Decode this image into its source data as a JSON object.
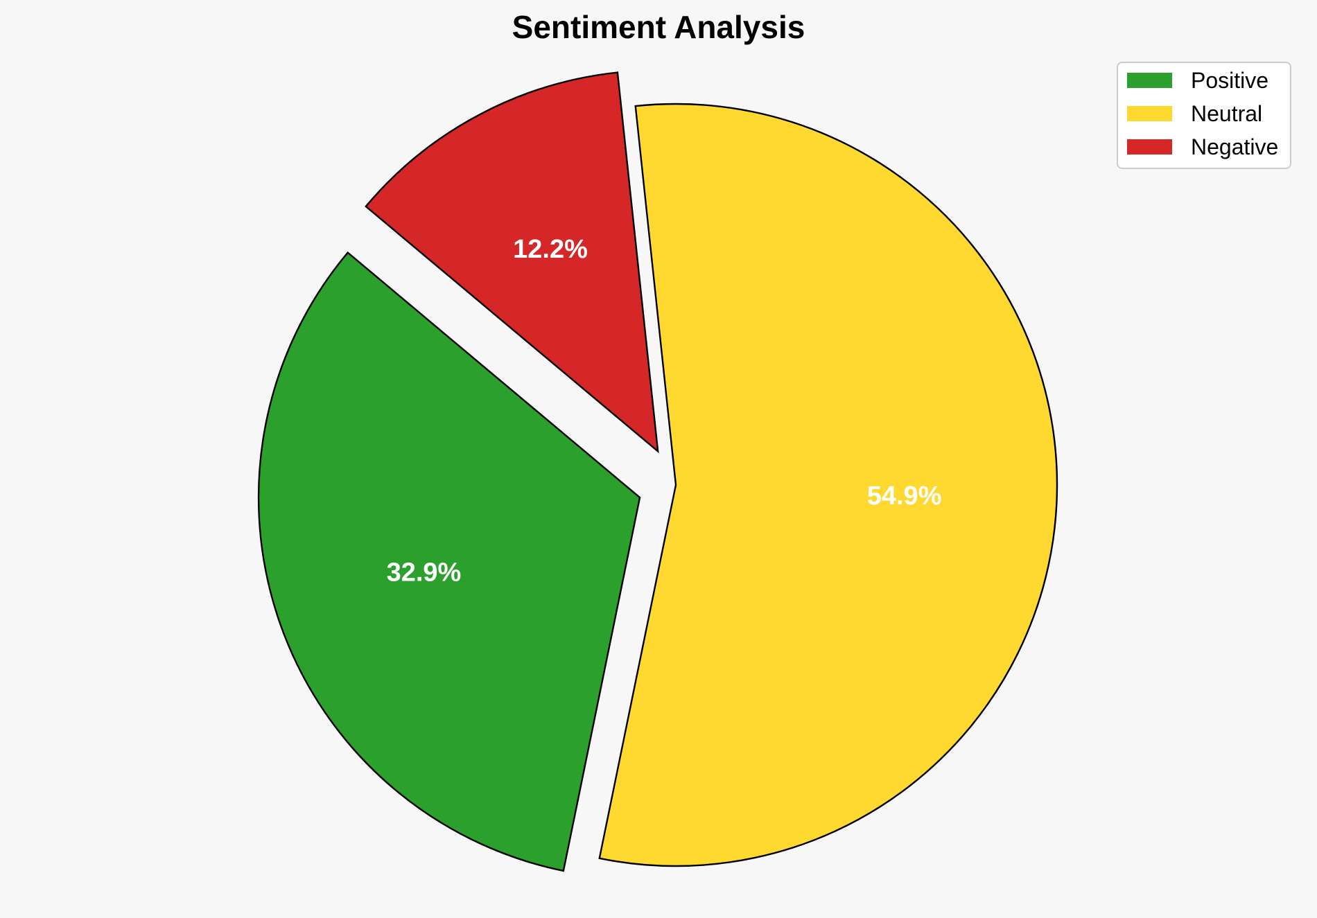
{
  "chart_data": {
    "type": "pie",
    "title": "Sentiment Analysis",
    "categories": [
      "Positive",
      "Neutral",
      "Negative"
    ],
    "values": [
      32.9,
      54.9,
      12.2
    ],
    "labels": [
      "32.9%",
      "54.9%",
      "12.2%"
    ],
    "colors": [
      "#2ca02c",
      "#ffd92f",
      "#d62728"
    ],
    "exploded": [
      "Positive",
      "Negative"
    ],
    "legend_position": "top-right"
  }
}
